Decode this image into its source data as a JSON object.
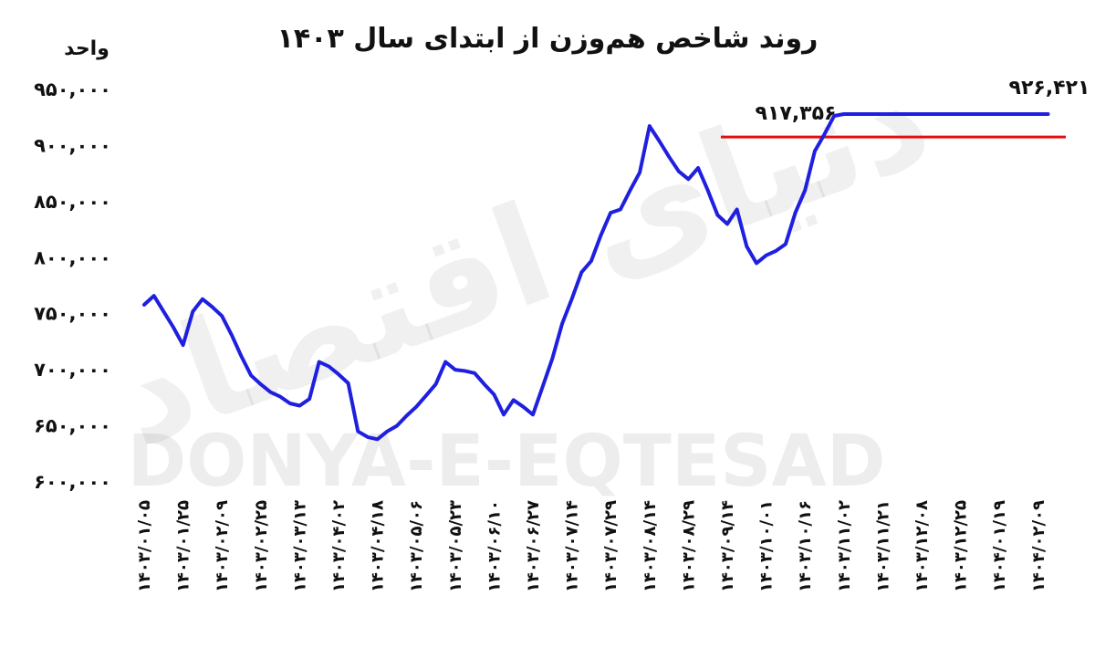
{
  "chart_data": {
    "type": "line",
    "title": "روند شاخص هم‌وزن  از ابتدای سال ۱۴۰۳",
    "ylabel": "واحد",
    "watermark": {
      "latin": "DONYA-E-EQTESAD",
      "persian": "دنیای اقتصاد"
    },
    "ylim": [
      600000,
      950000
    ],
    "yticks": [
      {
        "value": 950000,
        "label": "۹۵۰,۰۰۰"
      },
      {
        "value": 900000,
        "label": "۹۰۰,۰۰۰"
      },
      {
        "value": 850000,
        "label": "۸۵۰,۰۰۰"
      },
      {
        "value": 800000,
        "label": "۸۰۰,۰۰۰"
      },
      {
        "value": 750000,
        "label": "۷۵۰,۰۰۰"
      },
      {
        "value": 700000,
        "label": "۷۰۰,۰۰۰"
      },
      {
        "value": 650000,
        "label": "۶۵۰,۰۰۰"
      },
      {
        "value": 600000,
        "label": "۶۰۰,۰۰۰"
      }
    ],
    "xticks": [
      "۱۴۰۳/۰۱/۰۵",
      "۱۴۰۳/۰۱/۲۵",
      "۱۴۰۳/۰۲/۰۹",
      "۱۴۰۳/۰۲/۲۵",
      "۱۴۰۳/۰۳/۱۳",
      "۱۴۰۳/۰۴/۰۲",
      "۱۴۰۳/۰۴/۱۸",
      "۱۴۰۳/۰۵/۰۶",
      "۱۴۰۳/۰۵/۲۳",
      "۱۴۰۳/۰۶/۱۰",
      "۱۴۰۳/۰۶/۲۷",
      "۱۴۰۳/۰۷/۱۴",
      "۱۴۰۳/۰۷/۲۹",
      "۱۴۰۳/۰۸/۱۴",
      "۱۴۰۳/۰۸/۲۹",
      "۱۴۰۳/۰۹/۱۴",
      "۱۴۰۳/۱۰/۰۱",
      "۱۴۰۳/۱۰/۱۶",
      "۱۴۰۳/۱۱/۰۲",
      "۱۴۰۳/۱۱/۲۱",
      "۱۴۰۳/۱۲/۰۸",
      "۱۴۰۳/۱۲/۲۵",
      "۱۴۰۴/۰۱/۱۹",
      "۱۴۰۴/۰۲/۰۹"
    ],
    "series": [
      {
        "color": "#1f1fe0",
        "x": [
          0,
          0.25,
          0.5,
          0.75,
          1,
          1.25,
          1.5,
          1.75,
          2,
          2.25,
          2.5,
          2.75,
          3,
          3.25,
          3.5,
          3.75,
          4,
          4.25,
          4.5,
          4.75,
          5,
          5.25,
          5.5,
          5.75,
          6,
          6.25,
          6.5,
          6.75,
          7,
          7.25,
          7.5,
          7.75,
          8,
          8.25,
          8.5,
          8.75,
          9,
          9.25,
          9.5,
          9.75,
          10,
          10.25,
          10.5,
          10.75,
          11,
          11.25,
          11.5,
          11.75,
          12,
          12.25,
          12.5,
          12.75,
          13,
          13.25,
          13.5,
          13.75,
          14,
          14.25,
          14.5,
          14.75,
          15,
          15.25,
          15.5,
          15.75,
          16,
          16.25,
          16.5,
          16.75,
          17,
          17.25,
          17.5,
          17.75,
          18,
          18.25,
          18.5,
          18.75,
          19,
          19.25,
          19.5,
          19.75,
          20,
          20.25,
          20.5,
          20.75,
          21,
          21.25,
          21.5,
          21.75,
          22,
          22.25,
          22.5,
          22.75,
          23,
          23.25
        ],
        "values": [
          758000,
          766000,
          752000,
          738000,
          722000,
          752000,
          763000,
          756000,
          748000,
          731000,
          712000,
          695000,
          687000,
          680000,
          676000,
          670000,
          668000,
          674000,
          707000,
          703000,
          696000,
          688000,
          645000,
          640000,
          638000,
          645000,
          650000,
          659000,
          667000,
          677000,
          687000,
          707000,
          700000,
          699000,
          697000,
          687000,
          678000,
          660000,
          673000,
          667000,
          660000,
          685000,
          710000,
          741000,
          763000,
          787000,
          797000,
          820000,
          840000,
          843000,
          860000,
          876000,
          917356,
          904000,
          890000,
          877000,
          870000,
          880000,
          860000,
          838000,
          830000,
          843000,
          810000,
          795000,
          802000,
          806000,
          812000,
          840000,
          860000,
          895000,
          910000,
          926421,
          928000,
          928000,
          928000,
          928000,
          928000,
          928000,
          928000,
          928000,
          928000,
          928000,
          928000,
          928000,
          928000,
          928000,
          928000,
          928000,
          928000,
          928000,
          928000,
          928000,
          928000,
          928000
        ],
        "xmax": 23.25
      }
    ],
    "annotations": [
      {
        "label": "۹۱۷,۳۵۶",
        "value": 917356
      },
      {
        "label": "۹۲۶,۴۲۱",
        "value": 926421
      }
    ],
    "reference_line": {
      "value": 917356,
      "color": "#e01010"
    }
  }
}
